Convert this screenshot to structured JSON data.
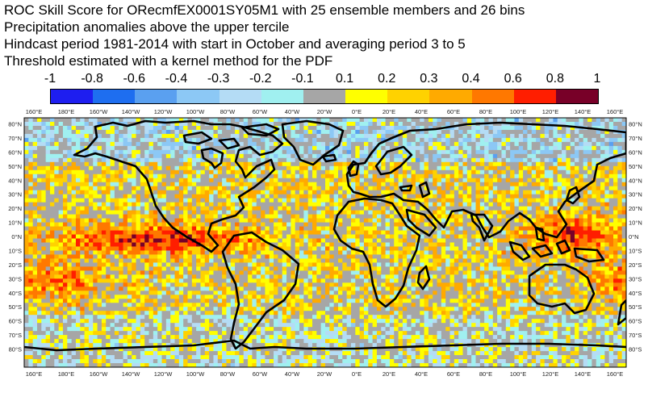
{
  "title": {
    "line1": "ROC Skill Score for ORecmfEX0001SY05M1 with 25 ensemble members and 26 bins",
    "line2": "Precipitation anomalies above the upper tercile",
    "line3": "Hindcast period 1981-2014 with start in October and averaging period  3 to  5",
    "line4": "Threshold estimated with a kernel method for the PDF"
  },
  "colorbar": {
    "labels": [
      "-1",
      "-0.8",
      "-0.6",
      "-0.4",
      "-0.3",
      "-0.2",
      "-0.1",
      "0.1",
      "0.2",
      "0.3",
      "0.4",
      "0.6",
      "0.8",
      "1"
    ],
    "colors": [
      "#1e1ef0",
      "#1e6ef0",
      "#5aa0f0",
      "#8cc8f5",
      "#b4dcf5",
      "#a0f0f0",
      "#a6a6a6",
      "#ffff00",
      "#ffd200",
      "#ffaa00",
      "#ff7800",
      "#ff1e00",
      "#780028"
    ]
  },
  "map": {
    "top_lon_labels": [
      "160°E",
      "180°E",
      "160°W",
      "140°W",
      "120°W",
      "100°W",
      "80°W",
      "60°W",
      "40°W",
      "20°W",
      "0°E",
      "20°E",
      "40°E",
      "60°E",
      "80°E",
      "100°E",
      "120°E",
      "140°E",
      "160°E"
    ],
    "bottom_lon_labels": [
      "160°E",
      "180°E",
      "160°W",
      "140°W",
      "120°W",
      "100°W",
      "80°W",
      "60°W",
      "40°W",
      "20°W",
      "0°E",
      "20°E",
      "40°E",
      "60°E",
      "80°E",
      "100°E",
      "120°E",
      "140°E",
      "160°E"
    ],
    "left_lat_labels": [
      "80°N",
      "70°N",
      "60°N",
      "50°N",
      "40°N",
      "30°N",
      "20°N",
      "10°N",
      "0°N",
      "10°S",
      "20°S",
      "30°S",
      "40°S",
      "50°S",
      "60°S",
      "70°S",
      "80°S"
    ],
    "right_lat_labels": [
      "80°N",
      "70°N",
      "60°N",
      "50°N",
      "40°N",
      "30°N",
      "20°N",
      "10°N",
      "0°N",
      "10°S",
      "20°S",
      "30°S",
      "40°S",
      "50°S",
      "60°S",
      "70°S",
      "80°S"
    ]
  }
}
